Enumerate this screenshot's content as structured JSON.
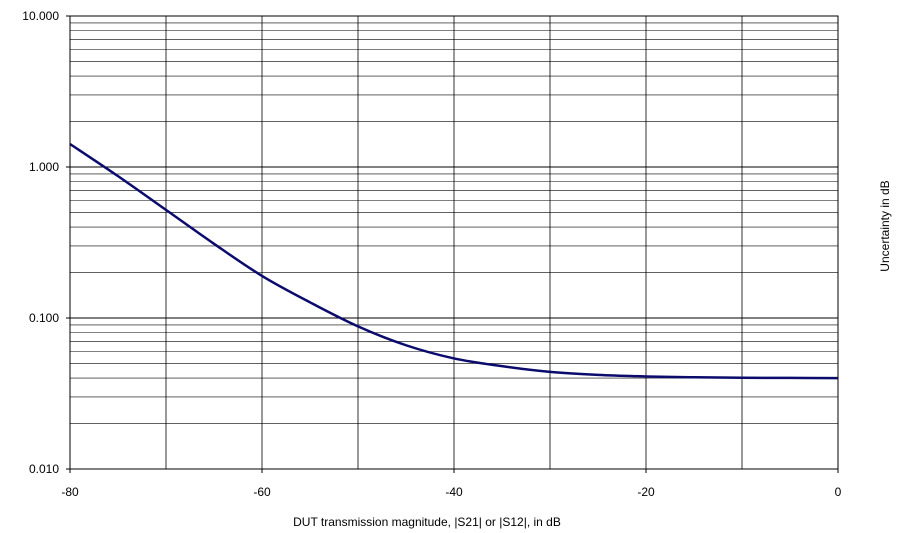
{
  "chart_data": {
    "type": "line",
    "xlabel": "DUT transmission magnitude, |S21| or |S12|, in dB",
    "ylabel": "Uncertainty in dB",
    "xlim": [
      -80,
      0
    ],
    "ylim": [
      0.01,
      10
    ],
    "yscale": "log",
    "grid": true,
    "x_ticks": [
      -80,
      -60,
      -40,
      -20,
      0
    ],
    "x_tick_labels": [
      "-80",
      "-60",
      "-40",
      "-20",
      "0"
    ],
    "y_ticks": [
      0.01,
      0.1,
      1,
      10
    ],
    "y_tick_labels": [
      "0.010",
      "0.100",
      "1.000",
      "10.000"
    ],
    "series": [
      {
        "color": "#0b0b6e",
        "x": [
          -80,
          -75,
          -70,
          -65,
          -60,
          -55,
          -50,
          -45,
          -40,
          -35,
          -30,
          -25,
          -20,
          -15,
          -10,
          -5,
          0
        ],
        "y": [
          1.42,
          0.87,
          0.52,
          0.31,
          0.19,
          0.127,
          0.088,
          0.066,
          0.054,
          0.048,
          0.044,
          0.042,
          0.041,
          0.0405,
          0.0402,
          0.0401,
          0.04
        ]
      }
    ]
  }
}
